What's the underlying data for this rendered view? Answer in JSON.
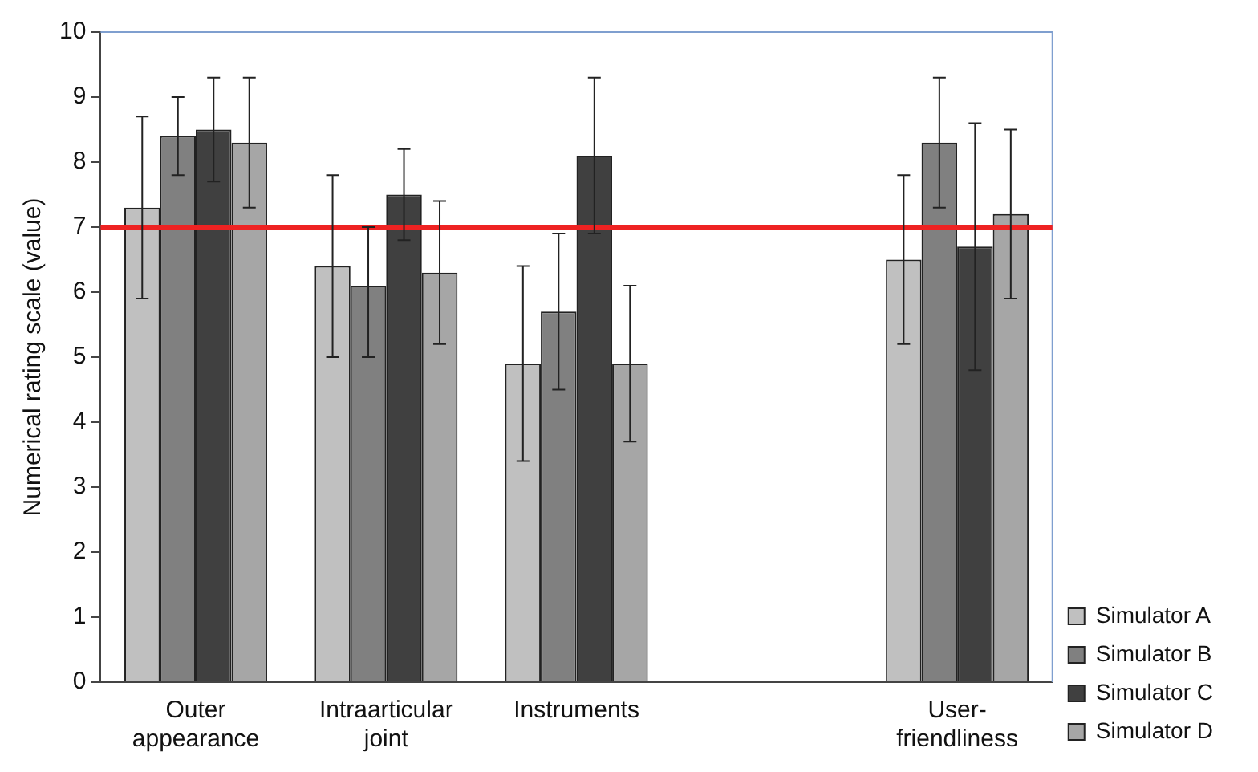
{
  "chart_data": {
    "type": "bar",
    "ylabel": "Numerical rating scale (value)",
    "categories": [
      "Outer appearance",
      "Intraarticular joint",
      "Instruments",
      null,
      "User-friendliness"
    ],
    "series": [
      {
        "name": "Simulator A",
        "color": "#c0c0c0",
        "values": [
          7.3,
          6.4,
          4.9,
          null,
          6.5
        ],
        "errors": [
          [
            5.9,
            8.7
          ],
          [
            5.0,
            7.8
          ],
          [
            3.4,
            6.4
          ],
          null,
          [
            5.2,
            7.8
          ]
        ]
      },
      {
        "name": "Simulator B",
        "color": "#808080",
        "values": [
          8.4,
          6.1,
          5.7,
          null,
          8.3
        ],
        "errors": [
          [
            7.8,
            9.0
          ],
          [
            5.0,
            7.0
          ],
          [
            4.5,
            6.9
          ],
          null,
          [
            7.3,
            9.3
          ]
        ]
      },
      {
        "name": "Simulator C",
        "color": "#404040",
        "values": [
          8.5,
          7.5,
          8.1,
          null,
          6.7
        ],
        "errors": [
          [
            7.7,
            9.3
          ],
          [
            6.8,
            8.2
          ],
          [
            6.9,
            9.3
          ],
          null,
          [
            4.8,
            8.6
          ]
        ]
      },
      {
        "name": "Simulator D",
        "color": "#a6a6a6",
        "values": [
          8.3,
          6.3,
          4.9,
          null,
          7.2
        ],
        "errors": [
          [
            7.3,
            9.3
          ],
          [
            5.2,
            7.4
          ],
          [
            3.7,
            6.1
          ],
          null,
          [
            5.9,
            8.5
          ]
        ]
      }
    ],
    "ylim": [
      0,
      10
    ],
    "yticks": [
      0,
      1,
      2,
      3,
      4,
      5,
      6,
      7,
      8,
      9,
      10
    ],
    "grid": false,
    "legend": "bottom right",
    "ref_lines": [
      {
        "axis": "y",
        "value": 7,
        "color": "#ee2222"
      }
    ]
  }
}
